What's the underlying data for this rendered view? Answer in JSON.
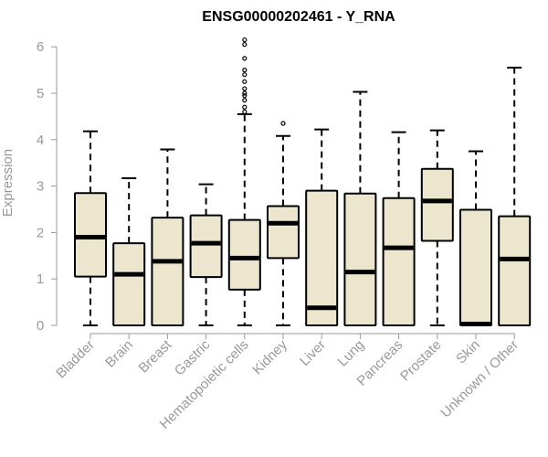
{
  "chart_data": {
    "type": "boxplot",
    "title": "ENSG00000202461 - Y_RNA",
    "ylabel": "Expression",
    "xlabel": "",
    "ylim": [
      0,
      6.2
    ],
    "yticks": [
      0,
      1,
      2,
      3,
      4,
      5,
      6
    ],
    "grid": false,
    "legend": "none",
    "colors": {
      "box_fill": "#ede6cf",
      "box_stroke": "#000000",
      "axis": "#999999",
      "title": "#000000"
    },
    "categories": [
      "Bladder",
      "Brain",
      "Breast",
      "Gastric",
      "Hematopoietic cells",
      "Kidney",
      "Liver",
      "Lung",
      "Pancreas",
      "Prostate",
      "Skin",
      "Unknown / Other"
    ],
    "boxes": [
      {
        "name": "Bladder",
        "whisker_low": 0,
        "q1": 1.05,
        "median": 1.9,
        "q3": 2.85,
        "whisker_high": 4.18,
        "outliers": []
      },
      {
        "name": "Brain",
        "whisker_low": 0,
        "q1": 0,
        "median": 1.1,
        "q3": 1.77,
        "whisker_high": 3.17,
        "outliers": []
      },
      {
        "name": "Breast",
        "whisker_low": 0,
        "q1": 0,
        "median": 1.38,
        "q3": 2.32,
        "whisker_high": 3.79,
        "outliers": []
      },
      {
        "name": "Gastric",
        "whisker_low": 0,
        "q1": 1.04,
        "median": 1.77,
        "q3": 2.37,
        "whisker_high": 3.04,
        "outliers": []
      },
      {
        "name": "Hematopoietic cells",
        "whisker_low": 0,
        "q1": 0.77,
        "median": 1.45,
        "q3": 2.27,
        "whisker_high": 4.55,
        "outliers": [
          4.6,
          4.7,
          4.85,
          4.95,
          5.0,
          5.1,
          5.25,
          5.4,
          5.5,
          5.75,
          6.05,
          6.15
        ]
      },
      {
        "name": "Kidney",
        "whisker_low": 0,
        "q1": 1.45,
        "median": 2.2,
        "q3": 2.57,
        "whisker_high": 4.08,
        "outliers": [
          4.35
        ]
      },
      {
        "name": "Liver",
        "whisker_low": 0,
        "q1": 0,
        "median": 0.38,
        "q3": 2.9,
        "whisker_high": 4.22,
        "outliers": []
      },
      {
        "name": "Lung",
        "whisker_low": 0,
        "q1": 0,
        "median": 1.15,
        "q3": 2.84,
        "whisker_high": 5.03,
        "outliers": []
      },
      {
        "name": "Pancreas",
        "whisker_low": 0,
        "q1": 0,
        "median": 1.67,
        "q3": 2.74,
        "whisker_high": 4.16,
        "outliers": []
      },
      {
        "name": "Prostate",
        "whisker_low": 0,
        "q1": 1.82,
        "median": 2.68,
        "q3": 3.37,
        "whisker_high": 4.2,
        "outliers": []
      },
      {
        "name": "Skin",
        "whisker_low": 0,
        "q1": 0,
        "median": 0.03,
        "q3": 2.49,
        "whisker_high": 3.75,
        "outliers": []
      },
      {
        "name": "Unknown / Other",
        "whisker_low": 0,
        "q1": 0,
        "median": 1.43,
        "q3": 2.35,
        "whisker_high": 5.55,
        "outliers": []
      }
    ]
  }
}
